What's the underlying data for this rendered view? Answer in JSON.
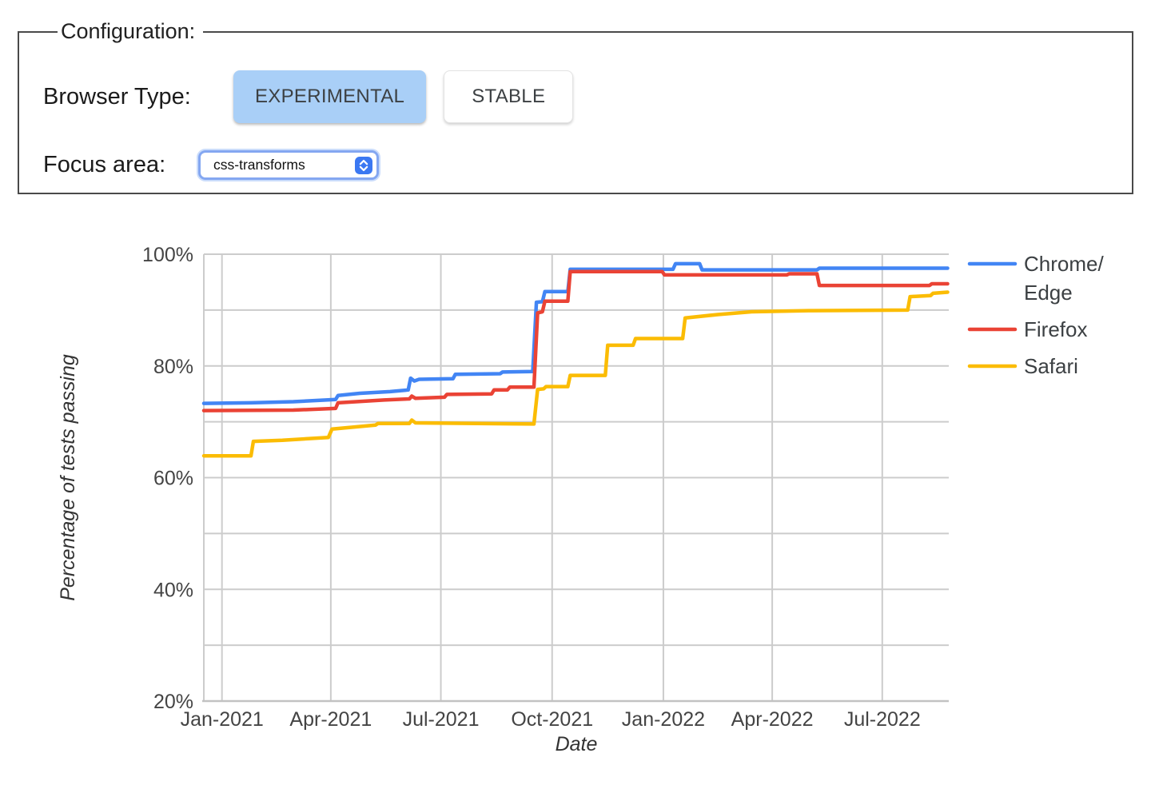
{
  "config": {
    "title": "Configuration:",
    "browser_type_label": "Browser Type:",
    "buttons": [
      {
        "label": "EXPERIMENTAL",
        "active": true
      },
      {
        "label": "STABLE",
        "active": false
      }
    ],
    "focus_area_label": "Focus area:",
    "focus_area_value": "css-transforms",
    "select_stepper_icon": "up-down-chevrons",
    "active_button_color": "#a9cff7",
    "select_ring_color": "#84a7f1",
    "stepper_color": "#3b78f2"
  },
  "chart_data": {
    "type": "line",
    "title": "",
    "xlabel": "Date",
    "ylabel": "Percentage of tests passing",
    "ylim": [
      20,
      100
    ],
    "y_gridline_step": 10,
    "y_ticks": [
      {
        "value": 20,
        "label": "20%"
      },
      {
        "value": 40,
        "label": "40%"
      },
      {
        "value": 60,
        "label": "60%"
      },
      {
        "value": 80,
        "label": "80%"
      },
      {
        "value": 100,
        "label": "100%"
      }
    ],
    "x_domain": [
      "2020-12-17",
      "2022-08-25"
    ],
    "x_ticks": [
      {
        "date": "2021-01-01",
        "label": "Jan-2021"
      },
      {
        "date": "2021-04-01",
        "label": "Apr-2021"
      },
      {
        "date": "2021-07-01",
        "label": "Jul-2021"
      },
      {
        "date": "2021-10-01",
        "label": "Oct-2021"
      },
      {
        "date": "2022-01-01",
        "label": "Jan-2022"
      },
      {
        "date": "2022-04-01",
        "label": "Apr-2022"
      },
      {
        "date": "2022-07-01",
        "label": "Jul-2022"
      }
    ],
    "grid_color": "#cccccc",
    "axis_line_color": "#c2c2c2",
    "axis_text_color": "#444444",
    "legend_position": "right",
    "series": [
      {
        "name": "Chrome/Edge",
        "legend_lines": [
          "Chrome/",
          "Edge"
        ],
        "color": "#4285f4",
        "points": [
          [
            "2020-12-17",
            73.3
          ],
          [
            "2021-01-25",
            73.4
          ],
          [
            "2021-03-01",
            73.6
          ],
          [
            "2021-04-05",
            74.0
          ],
          [
            "2021-04-07",
            74.7
          ],
          [
            "2021-04-25",
            75.1
          ],
          [
            "2021-05-20",
            75.4
          ],
          [
            "2021-06-04",
            75.7
          ],
          [
            "2021-06-06",
            77.8
          ],
          [
            "2021-06-09",
            77.3
          ],
          [
            "2021-06-13",
            77.6
          ],
          [
            "2021-07-11",
            77.7
          ],
          [
            "2021-07-13",
            78.5
          ],
          [
            "2021-08-19",
            78.6
          ],
          [
            "2021-08-21",
            78.9
          ],
          [
            "2021-09-15",
            79.0
          ],
          [
            "2021-09-18",
            91.4
          ],
          [
            "2021-09-23",
            91.5
          ],
          [
            "2021-09-25",
            93.3
          ],
          [
            "2021-10-14",
            93.3
          ],
          [
            "2021-10-16",
            97.3
          ],
          [
            "2022-01-09",
            97.3
          ],
          [
            "2022-01-11",
            98.3
          ],
          [
            "2022-01-31",
            98.3
          ],
          [
            "2022-02-02",
            97.2
          ],
          [
            "2022-05-08",
            97.2
          ],
          [
            "2022-05-10",
            97.5
          ],
          [
            "2022-08-24",
            97.5
          ]
        ]
      },
      {
        "name": "Firefox",
        "legend_lines": [
          "Firefox"
        ],
        "color": "#ea4335",
        "points": [
          [
            "2020-12-17",
            72.0
          ],
          [
            "2021-03-01",
            72.1
          ],
          [
            "2021-04-05",
            72.4
          ],
          [
            "2021-04-07",
            73.4
          ],
          [
            "2021-05-15",
            73.9
          ],
          [
            "2021-06-05",
            74.1
          ],
          [
            "2021-06-07",
            74.6
          ],
          [
            "2021-06-10",
            74.2
          ],
          [
            "2021-07-04",
            74.4
          ],
          [
            "2021-07-06",
            74.9
          ],
          [
            "2021-08-12",
            75.0
          ],
          [
            "2021-08-14",
            75.7
          ],
          [
            "2021-08-25",
            75.7
          ],
          [
            "2021-08-27",
            76.2
          ],
          [
            "2021-09-16",
            76.2
          ],
          [
            "2021-09-19",
            89.5
          ],
          [
            "2021-09-23",
            89.7
          ],
          [
            "2021-09-25",
            91.6
          ],
          [
            "2021-10-14",
            91.6
          ],
          [
            "2021-10-16",
            96.9
          ],
          [
            "2021-12-31",
            96.9
          ],
          [
            "2022-01-02",
            96.3
          ],
          [
            "2022-04-13",
            96.3
          ],
          [
            "2022-04-15",
            96.5
          ],
          [
            "2022-05-08",
            96.5
          ],
          [
            "2022-05-10",
            94.4
          ],
          [
            "2022-08-09",
            94.4
          ],
          [
            "2022-08-11",
            94.7
          ],
          [
            "2022-08-24",
            94.7
          ]
        ]
      },
      {
        "name": "Safari",
        "legend_lines": [
          "Safari"
        ],
        "color": "#fbbc04",
        "points": [
          [
            "2020-12-17",
            63.9
          ],
          [
            "2021-01-25",
            63.9
          ],
          [
            "2021-01-27",
            66.5
          ],
          [
            "2021-02-20",
            66.7
          ],
          [
            "2021-03-30",
            67.2
          ],
          [
            "2021-04-02",
            68.7
          ],
          [
            "2021-05-08",
            69.4
          ],
          [
            "2021-05-10",
            69.7
          ],
          [
            "2021-06-05",
            69.7
          ],
          [
            "2021-06-07",
            70.3
          ],
          [
            "2021-06-10",
            69.8
          ],
          [
            "2021-09-16",
            69.6
          ],
          [
            "2021-09-19",
            75.8
          ],
          [
            "2021-09-24",
            75.9
          ],
          [
            "2021-09-26",
            76.3
          ],
          [
            "2021-10-14",
            76.3
          ],
          [
            "2021-10-16",
            78.3
          ],
          [
            "2021-11-14",
            78.3
          ],
          [
            "2021-11-16",
            83.7
          ],
          [
            "2021-12-07",
            83.7
          ],
          [
            "2021-12-09",
            84.9
          ],
          [
            "2022-01-17",
            84.9
          ],
          [
            "2022-01-19",
            88.6
          ],
          [
            "2022-02-15",
            89.2
          ],
          [
            "2022-03-15",
            89.7
          ],
          [
            "2022-05-01",
            89.9
          ],
          [
            "2022-07-22",
            90.0
          ],
          [
            "2022-07-24",
            92.4
          ],
          [
            "2022-08-10",
            92.6
          ],
          [
            "2022-08-12",
            93.0
          ],
          [
            "2022-08-24",
            93.2
          ]
        ]
      }
    ]
  }
}
